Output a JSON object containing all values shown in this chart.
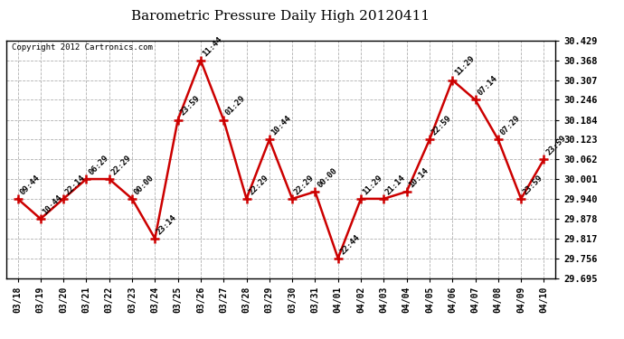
{
  "title": "Barometric Pressure Daily High 20120411",
  "copyright_text": "Copyright 2012 Cartronics.com",
  "line_color": "#cc0000",
  "marker_color": "#cc0000",
  "background_color": "#ffffff",
  "grid_color": "#b0b0b0",
  "x_labels": [
    "03/18",
    "03/19",
    "03/20",
    "03/21",
    "03/22",
    "03/23",
    "03/24",
    "03/25",
    "03/26",
    "03/27",
    "03/28",
    "03/29",
    "03/30",
    "03/31",
    "04/01",
    "04/02",
    "04/03",
    "04/04",
    "04/05",
    "04/06",
    "04/07",
    "04/08",
    "04/09",
    "04/10"
  ],
  "y_values": [
    29.94,
    29.878,
    29.94,
    30.001,
    30.001,
    29.94,
    29.817,
    30.184,
    30.368,
    30.184,
    29.94,
    30.123,
    29.94,
    29.962,
    29.756,
    29.94,
    29.94,
    29.962,
    30.123,
    30.307,
    30.246,
    30.123,
    29.94,
    30.062
  ],
  "point_labels": [
    "09:44",
    "10:44",
    "22:14",
    "06:29",
    "22:29",
    "00:00",
    "23:14",
    "23:59",
    "11:44",
    "01:29",
    "22:29",
    "10:44",
    "22:29",
    "00:00",
    "22:44",
    "11:29",
    "21:14",
    "10:14",
    "22:59",
    "11:29",
    "07:14",
    "07:29",
    "23:59",
    "23:59"
  ],
  "ylim_min": 29.695,
  "ylim_max": 30.429,
  "yticks": [
    29.695,
    29.756,
    29.817,
    29.878,
    29.94,
    30.001,
    30.062,
    30.123,
    30.184,
    30.246,
    30.307,
    30.368,
    30.429
  ]
}
